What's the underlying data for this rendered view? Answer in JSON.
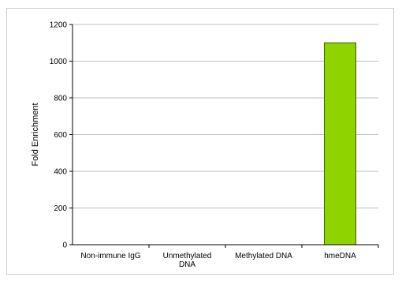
{
  "chart_data": {
    "type": "bar",
    "title": "",
    "xlabel": "",
    "ylabel": "Fold Enrichment",
    "categories": [
      [
        "Non-immune IgG"
      ],
      [
        "Unmethylated",
        "DNA"
      ],
      [
        "Methylated DNA"
      ],
      [
        "hmeDNA"
      ]
    ],
    "values": [
      0,
      0,
      0,
      1100
    ],
    "ylim": [
      0,
      1200
    ],
    "yticks": [
      0,
      200,
      400,
      600,
      800,
      1000,
      1200
    ],
    "grid": true,
    "legend": "none",
    "colors": {
      "bar_fill": "#8fd400",
      "bar_stroke": "#3f5f00",
      "grid": "#bfbfbf",
      "axis": "#000000"
    }
  }
}
